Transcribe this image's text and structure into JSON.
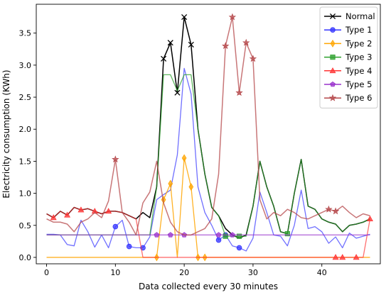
{
  "chart_data": {
    "type": "line",
    "xlabel": "Data collected every 30 minutes",
    "ylabel": "Electricity consumption (KWh)",
    "xlim": [
      -1.5,
      48.5
    ],
    "ylim": [
      -0.1,
      3.95
    ],
    "xticks": [
      0,
      10,
      20,
      30,
      40
    ],
    "yticks": [
      0.0,
      0.5,
      1.0,
      1.5,
      2.0,
      2.5,
      3.0,
      3.5
    ],
    "ytick_labels": [
      "0.0",
      "0.5",
      "1.0",
      "1.5",
      "2.0",
      "2.5",
      "3.0",
      "3.5"
    ],
    "legend_position": "top-right",
    "x": [
      0,
      1,
      2,
      3,
      4,
      5,
      6,
      7,
      8,
      9,
      10,
      11,
      12,
      13,
      14,
      15,
      16,
      17,
      18,
      19,
      20,
      21,
      22,
      23,
      24,
      25,
      26,
      27,
      28,
      29,
      30,
      31,
      32,
      33,
      34,
      35,
      36,
      37,
      38,
      39,
      40,
      41,
      42,
      43,
      44,
      45,
      46,
      47
    ],
    "series": [
      {
        "name": "Normal",
        "color": "#000000",
        "marker": "x",
        "values": [
          0.68,
          0.62,
          0.72,
          0.66,
          0.78,
          0.74,
          0.76,
          0.72,
          0.68,
          0.72,
          0.72,
          0.7,
          0.65,
          0.6,
          0.7,
          0.62,
          1.1,
          3.1,
          3.35,
          2.57,
          3.75,
          3.32,
          2.0,
          1.3,
          0.78,
          0.65,
          0.45,
          0.35,
          0.3,
          0.35,
          0.8,
          1.5,
          1.1,
          0.8,
          0.4,
          0.37,
          1.0,
          1.53,
          0.8,
          0.75,
          0.6,
          0.55,
          0.52,
          0.4,
          0.5,
          0.52,
          0.55,
          0.6
        ],
        "marker_points": [
          17,
          18,
          19,
          20,
          21
        ]
      },
      {
        "name": "Type 1",
        "color": "#3333ff",
        "marker": "circle",
        "values": [
          0.36,
          0.36,
          0.35,
          0.2,
          0.18,
          0.58,
          0.4,
          0.16,
          0.35,
          0.15,
          0.48,
          0.58,
          0.17,
          0.15,
          0.15,
          0.32,
          0.9,
          0.98,
          1.05,
          1.6,
          2.95,
          2.55,
          1.1,
          0.7,
          0.5,
          0.27,
          0.35,
          0.18,
          0.15,
          0.1,
          0.3,
          1.02,
          0.7,
          0.35,
          0.33,
          0.18,
          0.5,
          1.05,
          0.45,
          0.48,
          0.4,
          0.22,
          0.32,
          0.15,
          0.38,
          0.3,
          0.33,
          0.36
        ],
        "marker_points": [
          10,
          12,
          14,
          25,
          26,
          28
        ]
      },
      {
        "name": "Type 2",
        "color": "#ffa500",
        "marker": "diamond",
        "values": [
          0,
          0,
          0,
          0,
          0,
          0,
          0,
          0,
          0,
          0,
          0,
          0,
          0,
          0,
          0,
          0,
          0,
          0.9,
          1.15,
          0,
          1.55,
          1.1,
          0,
          0,
          0,
          0,
          0,
          0,
          0,
          0,
          0,
          0,
          0,
          0,
          0,
          0,
          0,
          0,
          0,
          0,
          0,
          0,
          0,
          0,
          0,
          0,
          0,
          0
        ],
        "marker_points": [
          16,
          17,
          18,
          20,
          21,
          22,
          23
        ]
      },
      {
        "name": "Type 3",
        "color": "#2ca02c",
        "marker": "square",
        "values": [
          0.35,
          0.35,
          0.35,
          0.35,
          0.35,
          0.35,
          0.35,
          0.35,
          0.35,
          0.35,
          0.35,
          0.35,
          0.35,
          0.35,
          0.35,
          0.35,
          1.1,
          2.85,
          2.85,
          2.6,
          2.85,
          2.85,
          2.0,
          1.3,
          0.78,
          0.65,
          0.33,
          0.33,
          0.33,
          0.33,
          0.8,
          1.5,
          1.1,
          0.8,
          0.4,
          0.37,
          1.0,
          1.53,
          0.8,
          0.75,
          0.6,
          0.55,
          0.52,
          0.4,
          0.5,
          0.52,
          0.55,
          0.6
        ],
        "marker_points": [
          26,
          28,
          35
        ]
      },
      {
        "name": "Type 4",
        "color": "#ff3333",
        "marker": "triangle",
        "values": [
          0.68,
          0.62,
          0.72,
          0.66,
          0.78,
          0.74,
          0.76,
          0.72,
          0.68,
          0.72,
          0.72,
          0.7,
          0.65,
          0.6,
          0,
          0,
          0,
          0,
          0,
          0,
          0,
          0,
          0,
          0,
          0,
          0,
          0,
          0,
          0,
          0,
          0,
          0,
          0,
          0,
          0,
          0,
          0,
          0,
          0,
          0,
          0,
          0,
          0,
          0,
          0,
          0,
          0,
          0.6
        ],
        "marker_points": [
          1,
          3,
          5,
          7,
          9,
          42,
          43,
          45,
          47
        ]
      },
      {
        "name": "Type 5",
        "color": "#9932cc",
        "marker": "pentagon",
        "values": [
          0.35,
          0.35,
          0.35,
          0.35,
          0.35,
          0.35,
          0.35,
          0.35,
          0.35,
          0.35,
          0.35,
          0.35,
          0.35,
          0.35,
          0.35,
          0.35,
          0.35,
          0.35,
          0.35,
          0.35,
          0.35,
          0.35,
          0.35,
          0.35,
          0.35,
          0.35,
          0.35,
          0.35,
          0.35,
          0.35,
          0.35,
          0.35,
          0.35,
          0.35,
          0.35,
          0.35,
          0.35,
          0.35,
          0.35,
          0.35,
          0.35,
          0.35,
          0.35,
          0.35,
          0.35,
          0.35,
          0.35,
          0.35
        ],
        "marker_points": [
          16,
          18,
          20,
          25,
          27
        ]
      },
      {
        "name": "Type 6",
        "color": "#b5484b",
        "marker": "star",
        "values": [
          0.6,
          0.55,
          0.55,
          0.52,
          0.4,
          0.55,
          0.6,
          0.7,
          0.62,
          0.88,
          1.53,
          0.7,
          0.55,
          0.35,
          0.85,
          1.02,
          1.5,
          0.85,
          0.55,
          0.4,
          0.35,
          0.35,
          0.4,
          0.45,
          0.6,
          1.3,
          3.3,
          3.75,
          2.57,
          3.35,
          3.1,
          0.9,
          0.6,
          0.7,
          0.65,
          0.75,
          0.7,
          0.62,
          0.6,
          0.65,
          0.7,
          0.75,
          0.72,
          0.8,
          0.7,
          0.62,
          0.68,
          0.65
        ],
        "marker_points": [
          10,
          26,
          27,
          28,
          29,
          30,
          41,
          42
        ]
      }
    ]
  }
}
